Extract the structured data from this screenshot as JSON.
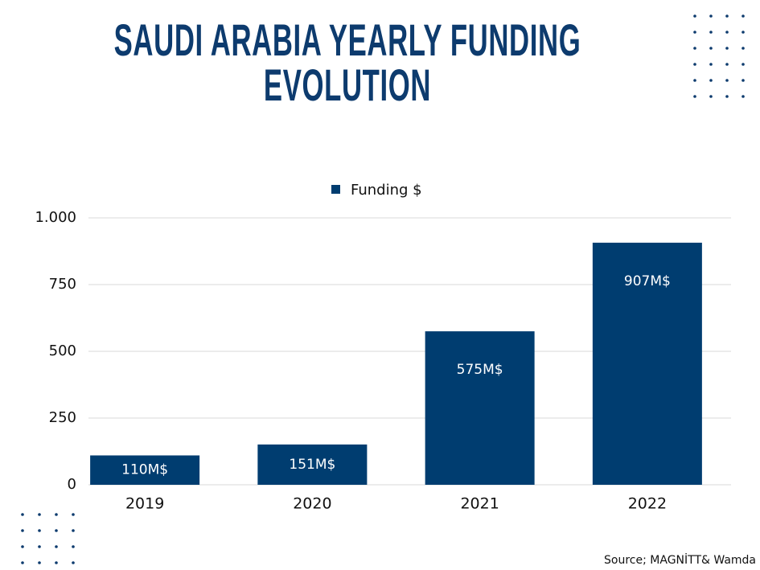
{
  "chart_data": {
    "type": "bar",
    "title": "SAUDI ARABIA YEARLY FUNDING EVOLUTION",
    "categories": [
      "2019",
      "2020",
      "2021",
      "2022"
    ],
    "series": [
      {
        "name": "Funding $",
        "color": "#003d70",
        "values": [
          110,
          151,
          575,
          907
        ],
        "value_labels": [
          "110M$",
          "151M$",
          "575M$",
          "907M$"
        ]
      }
    ],
    "ylim": [
      0,
      1000
    ],
    "yticks": [
      0,
      250,
      500,
      750,
      {
        "value": 1000,
        "label": "1.000"
      }
    ],
    "grid": true,
    "legend": "top",
    "source": "Source; MAGNİTT& Wamda"
  }
}
